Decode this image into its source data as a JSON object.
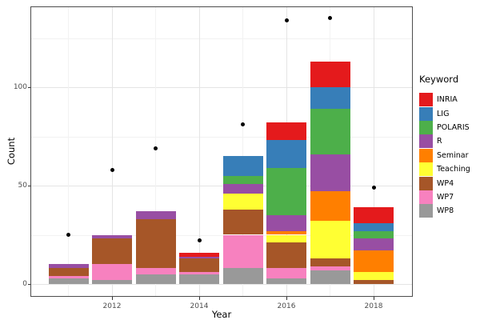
{
  "chart_data": {
    "type": "bar",
    "stacked": true,
    "title": "",
    "xlabel": "Year",
    "ylabel": "Count",
    "legend_title": "Keyword",
    "legend_position": "right",
    "grid": true,
    "categories": [
      2011,
      2012,
      2013,
      2014,
      2015,
      2016,
      2017,
      2018
    ],
    "x_tick_years": [
      2012,
      2014,
      2016,
      2018
    ],
    "x_tick_labels": [
      "2012",
      "2014",
      "2016",
      "2018"
    ],
    "y_ticks": [
      0,
      50,
      100
    ],
    "y_tick_labels": [
      "0",
      "50",
      "100"
    ],
    "y_minor_ticks": [
      25,
      75,
      125
    ],
    "ylim": [
      -7,
      141
    ],
    "series": [
      {
        "name": "INRIA",
        "color": "#E41A1C",
        "values": [
          0,
          0,
          0,
          2,
          0,
          9,
          13,
          8
        ]
      },
      {
        "name": "LIG",
        "color": "#377EB8",
        "values": [
          0,
          0,
          0,
          0,
          10,
          14,
          11,
          4
        ]
      },
      {
        "name": "POLARIS",
        "color": "#4DAF4A",
        "values": [
          0,
          0,
          0,
          0,
          4,
          24,
          23,
          4
        ]
      },
      {
        "name": "R",
        "color": "#984EA3",
        "values": [
          2,
          2,
          4,
          1,
          5,
          8,
          19,
          6
        ]
      },
      {
        "name": "Seminar",
        "color": "#FF7F00",
        "values": [
          0,
          0,
          0,
          0,
          0,
          2,
          15,
          11
        ]
      },
      {
        "name": "Teaching",
        "color": "#FFFF33",
        "values": [
          0,
          0,
          0,
          0,
          8,
          4,
          19,
          4
        ]
      },
      {
        "name": "WP4",
        "color": "#A65628",
        "values": [
          4,
          13,
          25,
          7,
          13,
          13,
          4,
          2
        ]
      },
      {
        "name": "WP7",
        "color": "#F781BF",
        "values": [
          1,
          8,
          3,
          1,
          17,
          5,
          2,
          0
        ]
      },
      {
        "name": "WP8",
        "color": "#999999",
        "values": [
          3,
          2,
          5,
          5,
          8,
          3,
          7,
          0
        ]
      }
    ],
    "stack_order_bottom_to_top": [
      "WP8",
      "WP7",
      "WP4",
      "Teaching",
      "Seminar",
      "R",
      "POLARIS",
      "LIG",
      "INRIA"
    ],
    "bar_totals": [
      10,
      25,
      37,
      16,
      65,
      82,
      113,
      39
    ],
    "points": {
      "color": "#000000",
      "values": [
        25,
        58,
        69,
        22,
        81,
        134,
        135,
        49
      ]
    }
  },
  "style": {
    "background": "#FFFFFF",
    "panel_border": "#4D4D4D",
    "grid_major": "#E4E4E4",
    "grid_minor": "#F2F2F2",
    "tick_color": "#333333",
    "tick_label_color": "#4D4D4D",
    "axis_title_color": "#000000",
    "point_color": "#000000"
  }
}
